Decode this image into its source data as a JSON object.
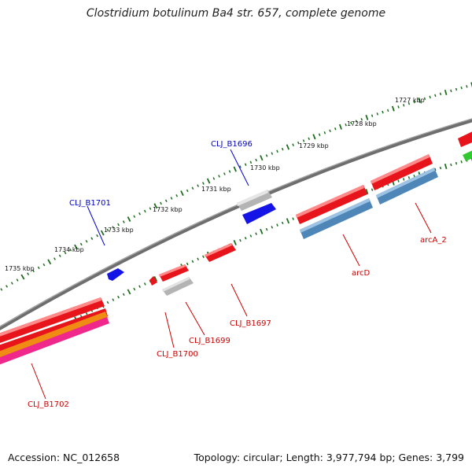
{
  "title": "Clostridium botulinum Ba4 str. 657, complete genome",
  "footer": {
    "accession": "Accession: NC_012658",
    "topology": "Topology: circular; Length: 3,977,794 bp; Genes: 3,799"
  },
  "colors": {
    "backbone": "#7a7a7a",
    "ticks": "#1d6e1d",
    "feature_red": "#e8141b",
    "feature_blue": "#1414e6",
    "feature_gray": "#b4b4b4",
    "feature_steelblue": "#4f86b8",
    "feature_orange": "#f08c14",
    "feature_pink": "#f0288c",
    "feature_green": "#32c832",
    "label_red": "#cc0000",
    "label_blue": "#0000cc"
  },
  "ticks": [
    {
      "label": "1727 kbp"
    },
    {
      "label": "1728 kbp"
    },
    {
      "label": "1729 kbp"
    },
    {
      "label": "1730 kbp"
    },
    {
      "label": "1731 kbp"
    },
    {
      "label": "1732 kbp"
    },
    {
      "label": "1733 kbp"
    },
    {
      "label": "1734 kbp"
    },
    {
      "label": "1735 kbp"
    }
  ],
  "gene_labels": [
    {
      "text": "CLJ_B1696",
      "color": "blue"
    },
    {
      "text": "CLJ_B1701",
      "color": "blue"
    },
    {
      "text": "arcA_2",
      "color": "red"
    },
    {
      "text": "arcD",
      "color": "red"
    },
    {
      "text": "CLJ_B1697",
      "color": "red"
    },
    {
      "text": "CLJ_B1699",
      "color": "red"
    },
    {
      "text": "CLJ_B1700",
      "color": "red"
    },
    {
      "text": "CLJ_B1702",
      "color": "red"
    }
  ]
}
